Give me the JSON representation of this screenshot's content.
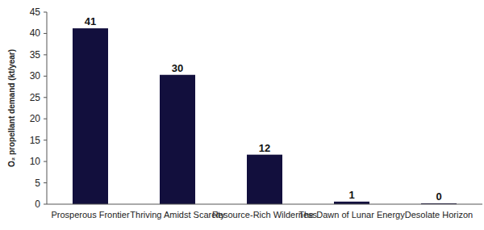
{
  "chart_data": {
    "type": "bar",
    "y_label": "O₂ propellant demand (kt/year)",
    "categories": [
      "Prosperous Frontier",
      "Thriving Amidst Scarcity",
      "Resource-Rich Wilderness",
      "The Dawn of Lunar Energy",
      "Desolate Horizon"
    ],
    "values": [
      41.2,
      30.3,
      11.6,
      0.6,
      0.2
    ],
    "value_labels": [
      "41",
      "30",
      "12",
      "1",
      "0"
    ],
    "data_labels": true,
    "color": "#120f3d",
    "ylim": [
      0,
      45
    ],
    "yticks": [
      0,
      5,
      10,
      15,
      20,
      25,
      30,
      35,
      40,
      45
    ],
    "grid": false
  }
}
